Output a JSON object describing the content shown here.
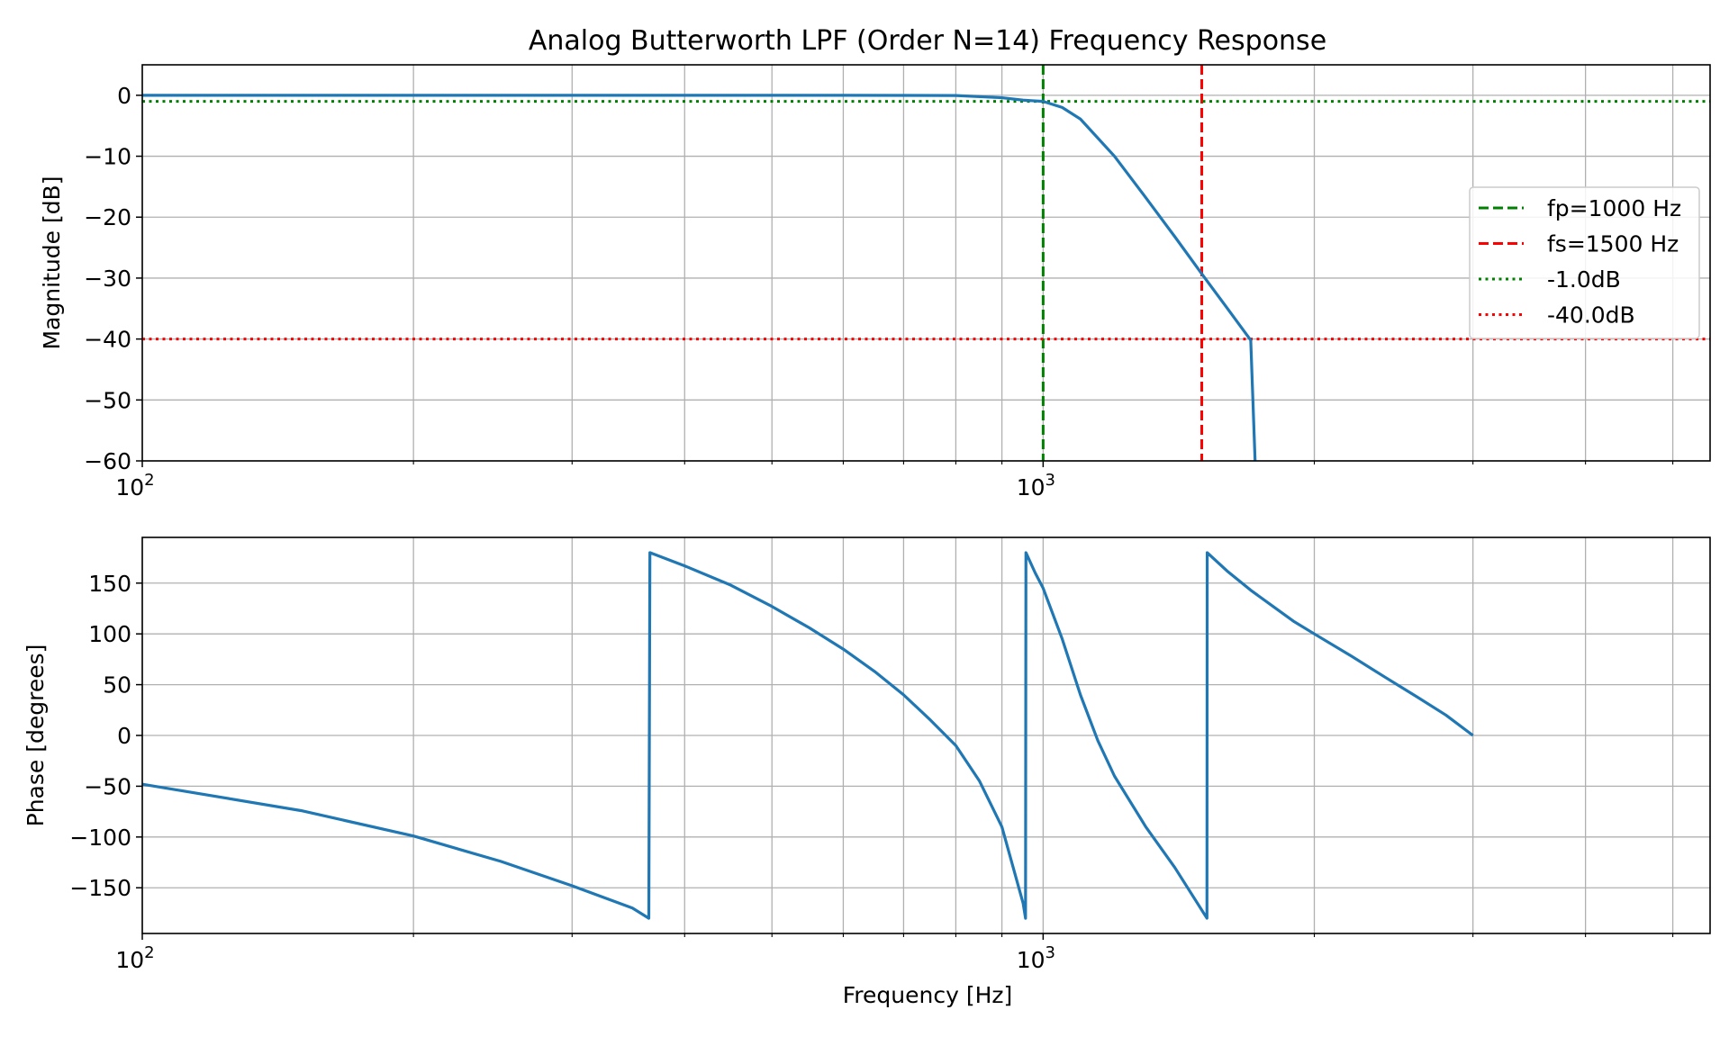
{
  "chart_data": [
    {
      "type": "line",
      "title": "Analog Butterworth LPF (Order N=14) Frequency Response",
      "xlabel": "",
      "ylabel": "Magnitude [dB]",
      "xscale": "log",
      "xlim": [
        100,
        5500
      ],
      "ylim": [
        -60,
        5
      ],
      "grid": true,
      "xticks": [
        {
          "base": "10",
          "exp": "2"
        },
        {
          "base": "10",
          "exp": "3"
        }
      ],
      "yticks": [
        "0",
        "−10",
        "−20",
        "−30",
        "−40",
        "−50",
        "−60"
      ],
      "legend_position": "right",
      "series": [
        {
          "name": "",
          "color": "#1f77b4",
          "style": "solid",
          "x": [
            100,
            200,
            400,
            600,
            800,
            900,
            950,
            1000,
            1050,
            1100,
            1200,
            1300,
            1400,
            1500,
            1600,
            1700,
            1720
          ],
          "y": [
            0,
            0,
            0,
            0,
            -0.04,
            -0.4,
            -0.8,
            -1.0,
            -2.0,
            -3.9,
            -10.0,
            -16.8,
            -23.2,
            -29.3,
            -34.9,
            -40.2,
            -61.0
          ]
        }
      ],
      "reference_lines": [
        {
          "name": "fp=1000 Hz",
          "orientation": "vertical",
          "value": 1000,
          "color": "#008000",
          "style": "dashed"
        },
        {
          "name": "fs=1500 Hz",
          "orientation": "vertical",
          "value": 1500,
          "color": "#ff0000",
          "style": "dashed"
        },
        {
          "name": "-1.0dB",
          "orientation": "horizontal",
          "value": -1.0,
          "color": "#008000",
          "style": "dotted"
        },
        {
          "name": "-40.0dB",
          "orientation": "horizontal",
          "value": -40.0,
          "color": "#ff0000",
          "style": "dotted"
        }
      ]
    },
    {
      "type": "line",
      "title": "",
      "xlabel": "Frequency [Hz]",
      "ylabel": "Phase [degrees]",
      "xscale": "log",
      "xlim": [
        100,
        5500
      ],
      "ylim": [
        -195,
        195
      ],
      "grid": true,
      "xticks": [
        {
          "base": "10",
          "exp": "2"
        },
        {
          "base": "10",
          "exp": "3"
        }
      ],
      "yticks": [
        "150",
        "100",
        "50",
        "0",
        "−50",
        "−100",
        "−150"
      ],
      "series": [
        {
          "name": "",
          "color": "#1f77b4",
          "style": "solid",
          "x": [
            100,
            150,
            200,
            250,
            300,
            350,
            365,
            366,
            400,
            450,
            500,
            550,
            600,
            650,
            700,
            750,
            800,
            850,
            900,
            950,
            956,
            957,
            980,
            1000,
            1050,
            1100,
            1150,
            1200,
            1300,
            1400,
            1520,
            1521,
            1600,
            1700,
            1800,
            1900,
            2000,
            2200,
            2400,
            2600,
            2800,
            3000
          ],
          "y": [
            -48,
            -74,
            -99,
            -124,
            -148,
            -170,
            -180,
            180,
            167,
            148,
            127,
            106,
            85,
            63,
            40,
            15,
            -10,
            -45,
            -90,
            -165,
            -180,
            180,
            160,
            145,
            95,
            40,
            -5,
            -40,
            -90,
            -130,
            -180,
            180,
            162,
            143,
            127,
            112,
            100,
            78,
            57,
            38,
            20,
            0
          ]
        }
      ]
    }
  ]
}
